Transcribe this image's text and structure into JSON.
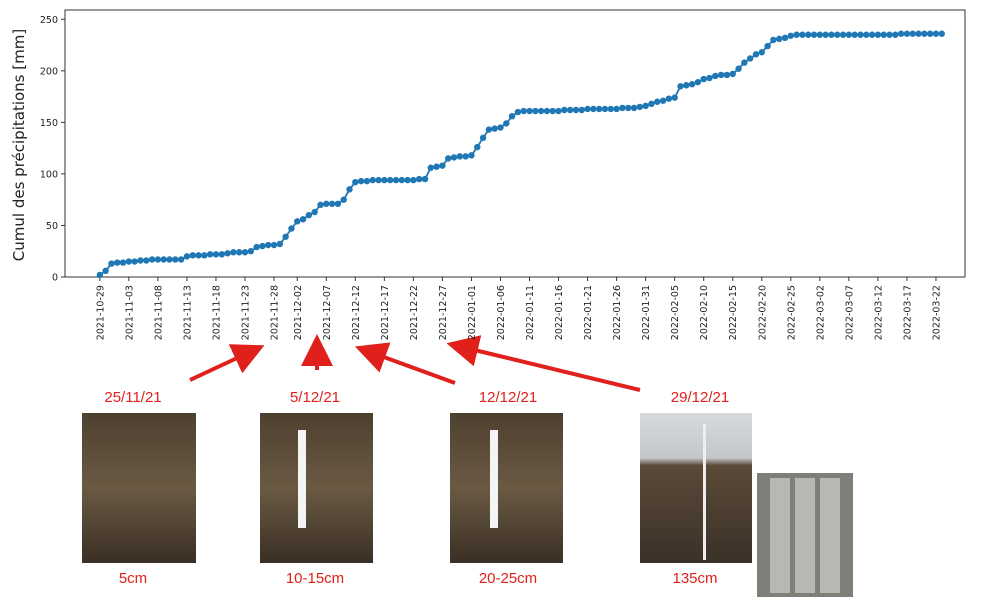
{
  "chart_data": {
    "type": "line",
    "y_label": "Cumul des précipitations [mm]",
    "xlim": [
      "2021-10-23",
      "2022-03-27"
    ],
    "ylim": [
      0,
      259
    ],
    "yticks": [
      0,
      50,
      100,
      150,
      200,
      250
    ],
    "xticks": [
      "2021-10-29",
      "2021-11-03",
      "2021-11-08",
      "2021-11-13",
      "2021-11-18",
      "2021-11-23",
      "2021-11-28",
      "2021-12-02",
      "2021-12-07",
      "2021-12-12",
      "2021-12-17",
      "2021-12-22",
      "2021-12-27",
      "2022-01-01",
      "2022-01-06",
      "2022-01-11",
      "2022-01-16",
      "2022-01-21",
      "2022-01-26",
      "2022-01-31",
      "2022-02-05",
      "2022-02-10",
      "2022-02-15",
      "2022-02-20",
      "2022-02-25",
      "2022-03-02",
      "2022-03-07",
      "2022-03-12",
      "2022-03-17",
      "2022-03-22"
    ],
    "x": [
      "2021-10-29",
      "2021-10-30",
      "2021-10-31",
      "2021-11-01",
      "2021-11-02",
      "2021-11-03",
      "2021-11-04",
      "2021-11-05",
      "2021-11-06",
      "2021-11-07",
      "2021-11-08",
      "2021-11-09",
      "2021-11-10",
      "2021-11-11",
      "2021-11-12",
      "2021-11-13",
      "2021-11-14",
      "2021-11-15",
      "2021-11-16",
      "2021-11-17",
      "2021-11-18",
      "2021-11-19",
      "2021-11-20",
      "2021-11-21",
      "2021-11-22",
      "2021-11-23",
      "2021-11-24",
      "2021-11-25",
      "2021-11-26",
      "2021-11-27",
      "2021-11-28",
      "2021-11-29",
      "2021-11-30",
      "2021-12-01",
      "2021-12-02",
      "2021-12-03",
      "2021-12-04",
      "2021-12-05",
      "2021-12-06",
      "2021-12-07",
      "2021-12-08",
      "2021-12-09",
      "2021-12-10",
      "2021-12-11",
      "2021-12-12",
      "2021-12-13",
      "2021-12-14",
      "2021-12-15",
      "2021-12-16",
      "2021-12-17",
      "2021-12-18",
      "2021-12-19",
      "2021-12-20",
      "2021-12-21",
      "2021-12-22",
      "2021-12-23",
      "2021-12-24",
      "2021-12-25",
      "2021-12-26",
      "2021-12-27",
      "2021-12-28",
      "2021-12-29",
      "2021-12-30",
      "2021-12-31",
      "2022-01-01",
      "2022-01-02",
      "2022-01-03",
      "2022-01-04",
      "2022-01-05",
      "2022-01-06",
      "2022-01-07",
      "2022-01-08",
      "2022-01-09",
      "2022-01-10",
      "2022-01-11",
      "2022-01-12",
      "2022-01-13",
      "2022-01-14",
      "2022-01-15",
      "2022-01-16",
      "2022-01-17",
      "2022-01-18",
      "2022-01-19",
      "2022-01-20",
      "2022-01-21",
      "2022-01-22",
      "2022-01-23",
      "2022-01-24",
      "2022-01-25",
      "2022-01-26",
      "2022-01-27",
      "2022-01-28",
      "2022-01-29",
      "2022-01-30",
      "2022-01-31",
      "2022-02-01",
      "2022-02-02",
      "2022-02-03",
      "2022-02-04",
      "2022-02-05",
      "2022-02-06",
      "2022-02-07",
      "2022-02-08",
      "2022-02-09",
      "2022-02-10",
      "2022-02-11",
      "2022-02-12",
      "2022-02-13",
      "2022-02-14",
      "2022-02-15",
      "2022-02-16",
      "2022-02-17",
      "2022-02-18",
      "2022-02-19",
      "2022-02-20",
      "2022-02-21",
      "2022-02-22",
      "2022-02-23",
      "2022-02-24",
      "2022-02-25",
      "2022-02-26",
      "2022-02-27",
      "2022-02-28",
      "2022-03-01",
      "2022-03-02",
      "2022-03-03",
      "2022-03-04",
      "2022-03-05",
      "2022-03-06",
      "2022-03-07",
      "2022-03-08",
      "2022-03-09",
      "2022-03-10",
      "2022-03-11",
      "2022-03-12",
      "2022-03-13",
      "2022-03-14",
      "2022-03-15",
      "2022-03-16",
      "2022-03-17",
      "2022-03-18",
      "2022-03-19",
      "2022-03-20",
      "2022-03-21",
      "2022-03-22",
      "2022-03-23"
    ],
    "series": [
      {
        "color": "#1f77b4",
        "values": [
          2,
          6,
          13,
          14,
          14,
          15,
          15,
          16,
          16,
          17,
          17,
          17,
          17,
          17,
          17,
          20,
          21,
          21,
          21,
          22,
          22,
          22,
          23,
          24,
          24,
          24,
          25,
          29,
          30,
          31,
          31,
          32,
          39,
          47,
          54,
          56,
          60,
          63,
          70,
          71,
          71,
          71,
          75,
          85,
          92,
          93,
          93,
          94,
          94,
          94,
          94,
          94,
          94,
          94,
          94,
          95,
          95,
          106,
          107,
          108,
          115,
          116,
          117,
          117,
          118,
          126,
          135,
          143,
          144,
          145,
          149,
          156,
          160,
          161,
          161,
          161,
          161,
          161,
          161,
          161,
          162,
          162,
          162,
          162,
          163,
          163,
          163,
          163,
          163,
          163,
          164,
          164,
          164,
          165,
          166,
          168,
          170,
          171,
          173,
          174,
          185,
          186,
          187,
          189,
          192,
          193,
          195,
          196,
          196,
          197,
          202,
          208,
          212,
          216,
          218,
          224,
          230,
          231,
          232,
          234,
          235,
          235,
          235,
          235,
          235,
          235,
          235,
          235,
          235,
          235,
          235,
          235,
          235,
          235,
          235,
          235,
          235,
          235,
          236,
          236,
          236,
          236,
          236,
          236,
          236,
          236
        ]
      }
    ]
  },
  "annotations": [
    {
      "date": "25/11/21",
      "depth": "5cm"
    },
    {
      "date": "5/12/21",
      "depth": "10-15cm"
    },
    {
      "date": "12/12/21",
      "depth": "20-25cm"
    },
    {
      "date": "29/12/21",
      "depth": "135cm"
    }
  ]
}
